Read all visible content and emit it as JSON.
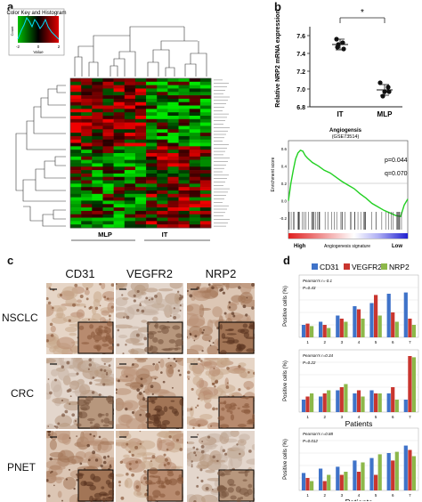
{
  "panels": {
    "a": {
      "label": "a",
      "color_key_title": "Color Key and Histogram",
      "color_key_ticks": [
        "-2",
        "0",
        "2"
      ],
      "color_key_xlabel": "Value",
      "color_key_ylabel": "Count",
      "group_labels": [
        "MLP",
        "IT"
      ]
    },
    "b": {
      "label": "b",
      "scatter": {
        "ylabel": "Relative NRP2 mRNA expression",
        "yticks": [
          "7.6",
          "7.4",
          "7.2",
          "7.0",
          "6.8"
        ],
        "groups": [
          "IT",
          "MLP"
        ],
        "significance": "*"
      },
      "gsea": {
        "title": "Angiogensis",
        "subtitle": "(GSE73514)",
        "p_text": "p=0.044",
        "q_text": "q=0.070",
        "ylabel": "Enrichment score",
        "yticks": [
          "0.6",
          "0.4",
          "0.2",
          "0.0",
          "-0.2"
        ],
        "xlabel_left": "High",
        "xlabel_mid": "Angiogenesis signature",
        "xlabel_right": "Low"
      }
    },
    "c": {
      "label": "c",
      "columns": [
        "CD31",
        "VEGFR2",
        "NRP2"
      ],
      "rows": [
        "NSCLC",
        "CRC",
        "PNET"
      ]
    },
    "d": {
      "label": "d",
      "legend": [
        "CD31",
        "VEGFR2",
        "NRP2"
      ],
      "xlabel": "Patients",
      "ylabel": "Positive cells (%)",
      "colors": {
        "CD31": "#3f73c9",
        "VEGFR2": "#c9362f",
        "NRP2": "#8db84a"
      }
    }
  },
  "chart_data": [
    {
      "type": "scatter",
      "ylabel": "Relative NRP2 mRNA expression",
      "categories": [
        "IT",
        "MLP"
      ],
      "ylim": [
        6.8,
        7.7
      ],
      "series": [
        {
          "name": "IT",
          "values": [
            7.56,
            7.52,
            7.5,
            7.45,
            7.47
          ]
        },
        {
          "name": "MLP",
          "values": [
            7.07,
            7.02,
            6.97,
            6.92,
            6.97
          ]
        }
      ],
      "annotation": "*"
    },
    {
      "type": "line",
      "title": "Angiogensis",
      "ylabel": "Enrichment score",
      "ylim": [
        -0.2,
        0.6
      ],
      "annotations": [
        "p=0.044",
        "q=0.070"
      ],
      "x": [
        0,
        2,
        4,
        6,
        8,
        10,
        12,
        14,
        16,
        20,
        25,
        30,
        35,
        40,
        45,
        50,
        55,
        60,
        65,
        70,
        75,
        80,
        85,
        90,
        94,
        97,
        100
      ],
      "values": [
        0.0,
        0.2,
        0.35,
        0.48,
        0.55,
        0.58,
        0.57,
        0.52,
        0.49,
        0.44,
        0.4,
        0.35,
        0.32,
        0.27,
        0.22,
        0.18,
        0.14,
        0.08,
        0.03,
        -0.03,
        -0.07,
        -0.11,
        -0.14,
        -0.17,
        -0.18,
        -0.05,
        0.02
      ]
    },
    {
      "type": "bar",
      "title": "NSCLC",
      "annotations": [
        "Pearson's r=-0.1",
        "P=0.43"
      ],
      "xlabel": "",
      "ylabel": "Positive cells (%)",
      "ylim": [
        0,
        100
      ],
      "categories": [
        "1",
        "2",
        "3",
        "4",
        "5",
        "6",
        "7"
      ],
      "series": [
        {
          "name": "CD31",
          "values": [
            20,
            25,
            35,
            50,
            55,
            70,
            72
          ]
        },
        {
          "name": "VEGFR2",
          "values": [
            22,
            20,
            30,
            45,
            68,
            40,
            30
          ]
        },
        {
          "name": "NRP2",
          "values": [
            18,
            15,
            25,
            30,
            35,
            25,
            20
          ]
        }
      ]
    },
    {
      "type": "bar",
      "title": "CRC",
      "annotations": [
        "Pearson's r=0.34",
        "P=0.22"
      ],
      "xlabel": "Patients",
      "ylabel": "Positive cells (%)",
      "ylim": [
        0,
        100
      ],
      "categories": [
        "1",
        "2",
        "3",
        "4",
        "5",
        "6",
        "7"
      ],
      "series": [
        {
          "name": "CD31",
          "values": [
            20,
            25,
            35,
            30,
            35,
            30,
            20
          ]
        },
        {
          "name": "VEGFR2",
          "values": [
            25,
            30,
            40,
            35,
            30,
            40,
            90
          ]
        },
        {
          "name": "NRP2",
          "values": [
            30,
            35,
            45,
            25,
            30,
            20,
            88
          ]
        }
      ]
    },
    {
      "type": "bar",
      "title": "PNET",
      "annotations": [
        "Pearson's r=0.88",
        "P=0.012"
      ],
      "xlabel": "Patients",
      "ylabel": "Positive cells (%)",
      "ylim": [
        0,
        100
      ],
      "categories": [
        "1",
        "2",
        "3",
        "4",
        "5",
        "6",
        "7"
      ],
      "series": [
        {
          "name": "CD31",
          "values": [
            28,
            35,
            38,
            48,
            52,
            60,
            72
          ]
        },
        {
          "name": "VEGFR2",
          "values": [
            20,
            15,
            25,
            30,
            25,
            48,
            65
          ]
        },
        {
          "name": "NRP2",
          "values": [
            15,
            25,
            30,
            45,
            58,
            62,
            55
          ]
        }
      ]
    }
  ]
}
